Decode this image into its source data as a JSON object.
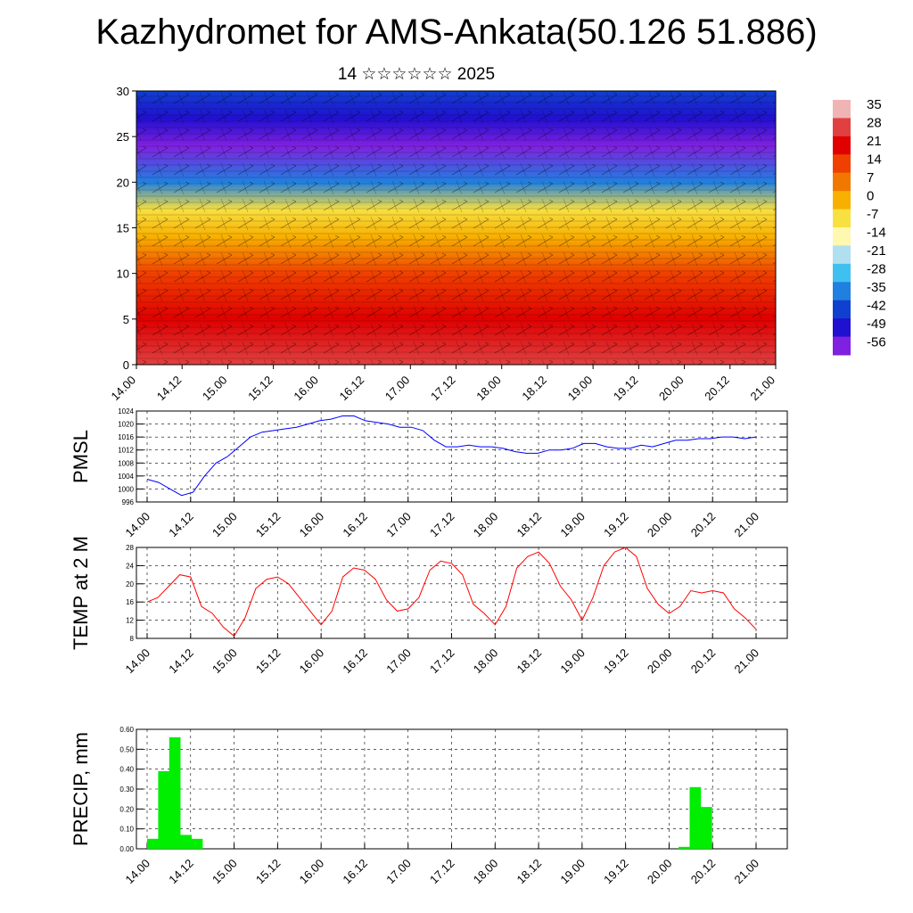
{
  "header": {
    "title": "Kazhydromet for AMS-Ankata(50.126 51.886)",
    "subtitle": "14 ☆☆☆☆☆☆ 2025"
  },
  "time_labels": [
    "14.00",
    "14.12",
    "15.00",
    "15.12",
    "16.00",
    "16.12",
    "17.00",
    "17.12",
    "18.00",
    "18.12",
    "19.00",
    "19.12",
    "20.00",
    "20.12",
    "21.00"
  ],
  "colors": {
    "pmsl_line": "#0000ff",
    "temp_line": "#ff0000",
    "precip_bar": "#00ee00",
    "grid": "#000000"
  },
  "chart_data": [
    {
      "type": "heatmap",
      "title": "",
      "ylim": [
        0,
        30
      ],
      "yticks": [
        0,
        5,
        10,
        15,
        20,
        25,
        30
      ],
      "colorbar_labels": [
        "35",
        "28",
        "21",
        "14",
        "7",
        "0",
        "-7",
        "-14",
        "-21",
        "-28",
        "-35",
        "-42",
        "-49",
        "-56"
      ],
      "colorbar_colors": [
        "#f0b4b4",
        "#e04040",
        "#e00000",
        "#f04000",
        "#f07800",
        "#f8b000",
        "#f8e040",
        "#fff8b0",
        "#b0e0f0",
        "#40c0f0",
        "#2080e0",
        "#1040d0",
        "#2010d0",
        "#8020e0"
      ],
      "profile_height": [
        0,
        5,
        10,
        14,
        17,
        20,
        24,
        27,
        30
      ],
      "profile_temperature": [
        30,
        24,
        12,
        0,
        -10,
        -35,
        -56,
        -50,
        -45
      ],
      "has_wind_vectors": true
    },
    {
      "type": "line",
      "ylabel": "PMSL",
      "ylim": [
        996,
        1024
      ],
      "yticks": [
        996,
        1000,
        1004,
        1008,
        1012,
        1016,
        1020,
        1024
      ],
      "series": [
        {
          "values": [
            1003,
            1002,
            1000,
            998,
            999,
            1004,
            1008,
            1010,
            1013,
            1016,
            1017.5,
            1018,
            1018.5,
            1019,
            1020,
            1021,
            1021.5,
            1022.5,
            1022.5,
            1021,
            1020.5,
            1020,
            1019,
            1019,
            1018,
            1015,
            1013,
            1013,
            1013.5,
            1013,
            1013,
            1012.5,
            1011.5,
            1011,
            1011,
            1012,
            1012,
            1012.5,
            1014,
            1014,
            1013,
            1012.5,
            1012.5,
            1013.5,
            1013,
            1014,
            1015,
            1015,
            1015.5,
            1015.5,
            1016,
            1016,
            1015.5,
            1016
          ]
        }
      ]
    },
    {
      "type": "line",
      "ylabel": "TEMP at 2 M",
      "ylim": [
        8,
        28
      ],
      "yticks": [
        8,
        12,
        16,
        20,
        24,
        28
      ],
      "series": [
        {
          "values": [
            16,
            17,
            19.5,
            22,
            21.5,
            15,
            13.5,
            10.5,
            8.5,
            12.5,
            19,
            21,
            21.5,
            20,
            17,
            14,
            11,
            14,
            21.5,
            23.5,
            23,
            21,
            16.5,
            14,
            14.5,
            17,
            23,
            25,
            24.5,
            22,
            15.5,
            13.5,
            11,
            15,
            23.5,
            26,
            27,
            24.5,
            19.5,
            16.5,
            12,
            17,
            24,
            27,
            28,
            26,
            19,
            15.5,
            13.5,
            15,
            18.5,
            18,
            18.5,
            18,
            14.5,
            12.5,
            10
          ]
        }
      ]
    },
    {
      "type": "bar",
      "ylabel": "PRECIP, mm",
      "ylim": [
        0,
        0.6
      ],
      "yticks": [
        "0.00",
        "0.10",
        "0.20",
        "0.30",
        "0.40",
        "0.50",
        "0.60"
      ],
      "values": [
        0.05,
        0.39,
        0.56,
        0.07,
        0.05,
        0,
        0,
        0,
        0,
        0,
        0,
        0,
        0,
        0,
        0,
        0,
        0,
        0,
        0,
        0,
        0,
        0,
        0,
        0,
        0,
        0,
        0,
        0,
        0,
        0,
        0,
        0,
        0,
        0,
        0,
        0,
        0,
        0,
        0,
        0,
        0,
        0,
        0,
        0,
        0,
        0,
        0,
        0,
        0.01,
        0.31,
        0.21,
        0,
        0,
        0,
        0,
        0
      ]
    }
  ]
}
